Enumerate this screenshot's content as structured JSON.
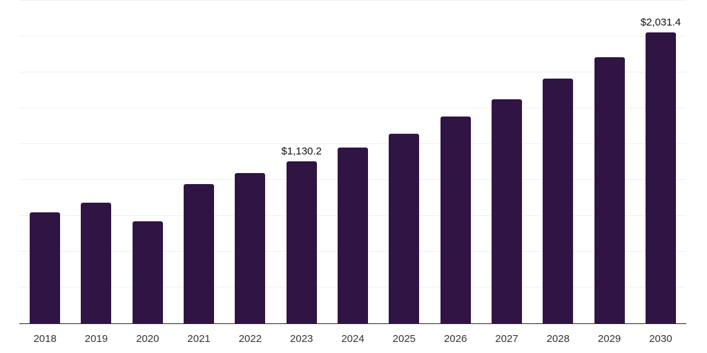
{
  "chart_data": {
    "type": "bar",
    "title": "",
    "xlabel": "",
    "ylabel": "",
    "categories": [
      "2018",
      "2019",
      "2020",
      "2021",
      "2022",
      "2023",
      "2024",
      "2025",
      "2026",
      "2027",
      "2028",
      "2029",
      "2030"
    ],
    "values": [
      774.5,
      841.8,
      712.1,
      972.8,
      1046.7,
      1130.2,
      1224.4,
      1321.9,
      1440.5,
      1560.5,
      1709.3,
      1856.3,
      2031.4
    ],
    "data_labels": [
      "",
      "",
      "",
      "",
      "",
      "$1,130.2",
      "",
      "",
      "",
      "",
      "",
      "",
      "$2,031.4"
    ],
    "ylim": [
      0,
      2250
    ],
    "gridline_step": 250,
    "grid": true,
    "legend": "none",
    "colors": {
      "bar": "#301444",
      "gridline": "#f0f0f0",
      "axis_line": "#262626",
      "axis_label": "#333333",
      "data_label": "#111111"
    }
  }
}
